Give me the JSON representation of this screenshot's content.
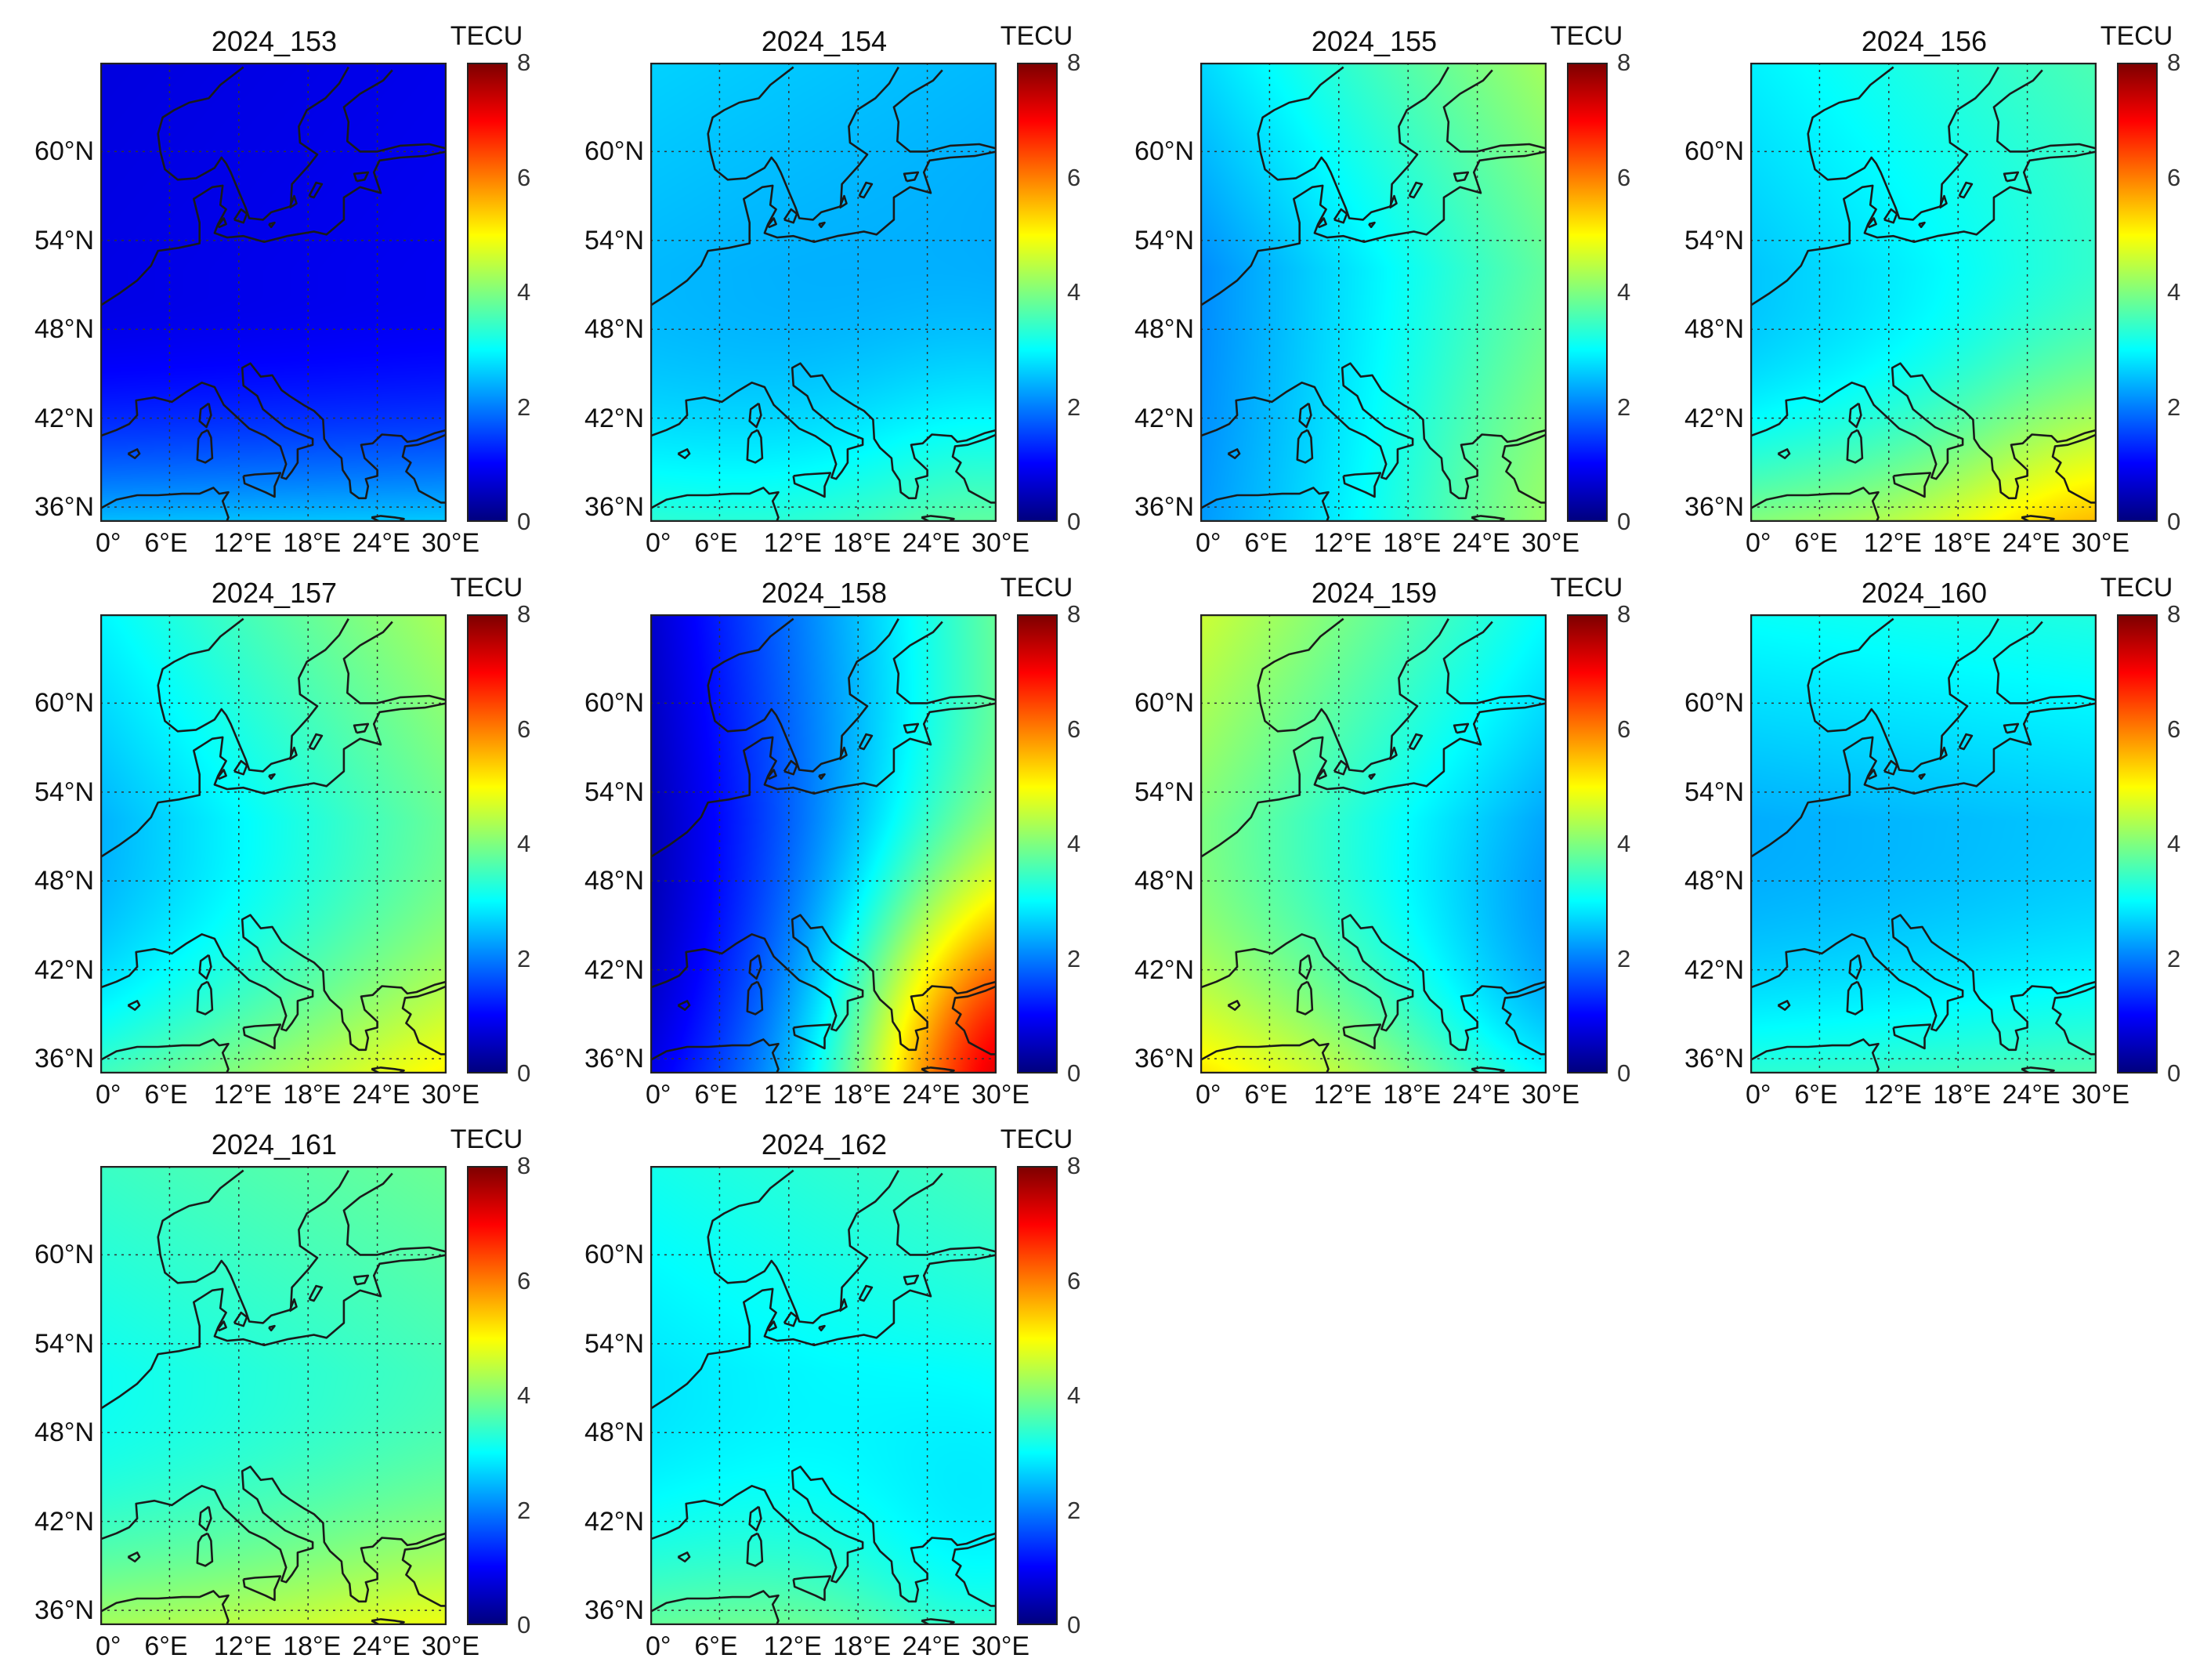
{
  "figure": {
    "colorbar_label": "TECU",
    "colorbar_ticks": [
      "0",
      "2",
      "4",
      "6",
      "8"
    ],
    "lat_labels": [
      "60°N",
      "54°N",
      "48°N",
      "42°N",
      "36°N"
    ],
    "lon_labels": [
      "0°",
      "6°E",
      "12°E",
      "18°E",
      "24°E",
      "30°E"
    ],
    "colormap": "jet",
    "range": [
      0,
      8
    ]
  },
  "panels": [
    {
      "title": "2024_153",
      "field": {
        "base": 0.85,
        "north": -0.05,
        "east": 0.05,
        "south": 1.7,
        "southeast": 0.0,
        "anomaly": 0.0
      }
    },
    {
      "title": "2024_154",
      "field": {
        "base": 2.35,
        "north": 0.2,
        "east": -0.1,
        "south": 0.9,
        "southeast": 0.6,
        "anomaly": 0.0
      }
    },
    {
      "title": "2024_155",
      "field": {
        "base": 2.9,
        "north": 0.6,
        "east": 0.8,
        "south": 0.1,
        "southeast": 0.4,
        "anomaly": 0.0
      }
    },
    {
      "title": "2024_156",
      "field": {
        "base": 2.9,
        "north": 0.35,
        "east": 0.35,
        "south": 1.5,
        "southeast": 0.8,
        "anomaly": 0.0
      }
    },
    {
      "title": "2024_157",
      "field": {
        "base": 3.1,
        "north": 0.55,
        "east": 0.7,
        "south": 1.1,
        "southeast": 0.2,
        "anomaly": 0.0
      }
    },
    {
      "title": "2024_158",
      "field": {
        "base": 2.0,
        "north": 0.2,
        "east": 1.6,
        "south": 0.4,
        "southeast": 3.2,
        "anomaly": 0.0
      }
    },
    {
      "title": "2024_159",
      "field": {
        "base": 3.2,
        "north": 0.6,
        "east": -0.8,
        "south": 1.2,
        "southeast": -0.6,
        "anomaly": 0.0
      }
    },
    {
      "title": "2024_160",
      "field": {
        "base": 2.45,
        "north": 0.7,
        "east": 0.1,
        "south": 1.0,
        "southeast": 0.1,
        "anomaly": 0.0
      }
    },
    {
      "title": "2024_161",
      "field": {
        "base": 3.3,
        "north": 0.35,
        "east": 0.2,
        "south": 1.2,
        "southeast": 0.2,
        "anomaly": 0.0
      }
    },
    {
      "title": "2024_162",
      "field": {
        "base": 3.0,
        "north": 0.35,
        "east": 0.2,
        "south": 1.0,
        "southeast": -0.8,
        "anomaly": 0.0
      }
    }
  ]
}
